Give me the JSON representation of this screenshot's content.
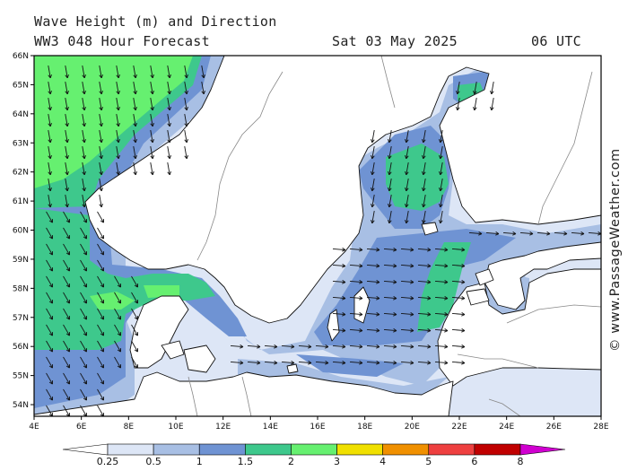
{
  "header": {
    "title": "Wave Height (m) and Direction",
    "model": "WW3 048 Hour Forecast",
    "date": "Sat 03 May 2025",
    "time": "06 UTC"
  },
  "credit": "© www.PassageWeather.com",
  "map": {
    "lon_range": [
      4,
      28
    ],
    "lat_range": [
      53.6,
      66
    ],
    "lon_labels": [
      "4E",
      "6E",
      "8E",
      "10E",
      "12E",
      "14E",
      "16E",
      "18E",
      "20E",
      "22E",
      "24E",
      "26E",
      "28E"
    ],
    "lat_labels": [
      "54N",
      "55N",
      "56N",
      "57N",
      "58N",
      "59N",
      "60N",
      "61N",
      "62N",
      "63N",
      "64N",
      "65N",
      "66N"
    ]
  },
  "legend": {
    "bins": [
      {
        "from": 0.25,
        "to": 0.5,
        "color": "#dde6f6"
      },
      {
        "from": 0.5,
        "to": 1,
        "color": "#a8bfe4"
      },
      {
        "from": 1,
        "to": 1.5,
        "color": "#6f93d3"
      },
      {
        "from": 1.5,
        "to": 2,
        "color": "#3ec88c"
      },
      {
        "from": 2,
        "to": 3,
        "color": "#66f070"
      },
      {
        "from": 3,
        "to": 4,
        "color": "#f0e000"
      },
      {
        "from": 4,
        "to": 5,
        "color": "#f09000"
      },
      {
        "from": 5,
        "to": 6,
        "color": "#ee4040"
      },
      {
        "from": 6,
        "to": 8,
        "color": "#c00000"
      }
    ],
    "tick_labels": [
      "0.25",
      "0.5",
      "1",
      "1.5",
      "2",
      "3",
      "4",
      "5",
      "6",
      "8"
    ],
    "overflow_color": "#d000d0"
  }
}
